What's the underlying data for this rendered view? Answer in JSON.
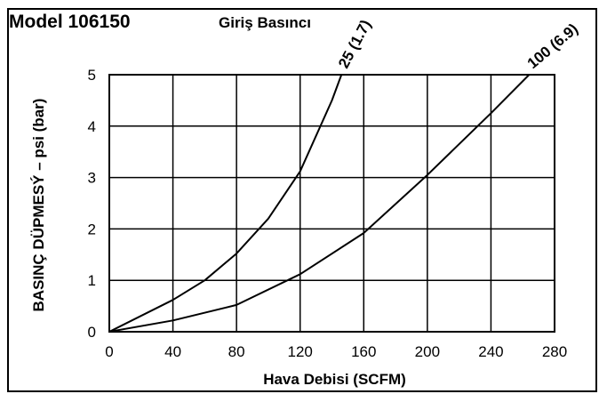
{
  "header": {
    "model": "Model 106150",
    "inlet_label": "Giriş Basıncı"
  },
  "chart_data": {
    "type": "line",
    "title": "",
    "xlabel": "Hava Debisi (SCFM)",
    "ylabel": "BASINÇ DÜPMESÝ – psi (bar)",
    "xlim": [
      0,
      280
    ],
    "ylim": [
      0,
      5
    ],
    "xticks": [
      "0",
      "40",
      "80",
      "120",
      "160",
      "200",
      "240",
      "280"
    ],
    "yticks": [
      "0",
      "1",
      "2",
      "3",
      "4",
      "5"
    ],
    "grid": true,
    "series": [
      {
        "name": "25 (1.7)",
        "x": [
          0,
          40,
          60,
          80,
          100,
          120,
          140,
          146
        ],
        "y": [
          0,
          0.62,
          1.0,
          1.52,
          2.2,
          3.12,
          4.5,
          5.0
        ]
      },
      {
        "name": "100 (6.9)",
        "x": [
          0,
          40,
          80,
          120,
          160,
          200,
          240,
          264
        ],
        "y": [
          0,
          0.22,
          0.52,
          1.12,
          1.92,
          3.05,
          4.25,
          5.0
        ]
      }
    ],
    "colors": {
      "line": "#000000",
      "grid": "#000000"
    }
  }
}
